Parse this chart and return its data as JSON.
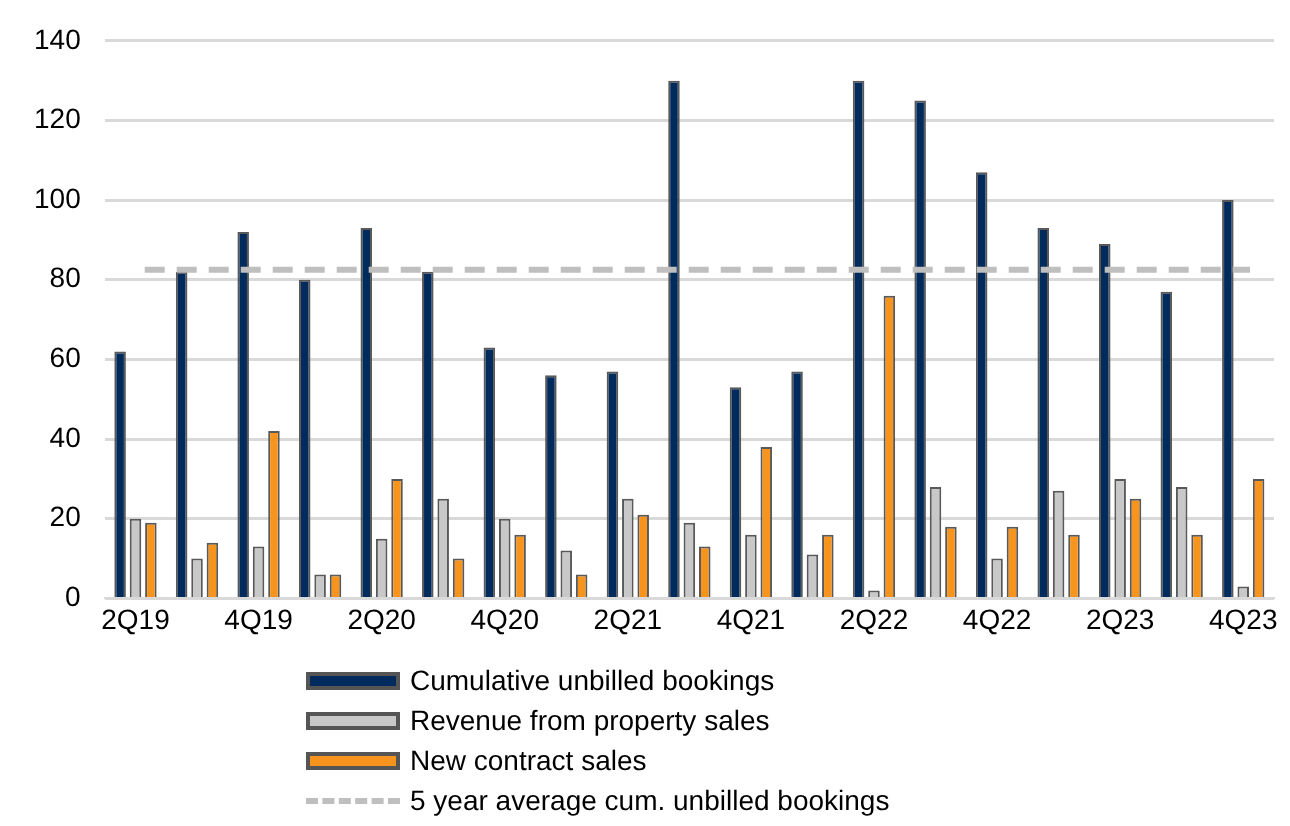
{
  "chart_data": {
    "type": "bar",
    "categories": [
      "2Q19",
      null,
      "4Q19",
      null,
      "2Q20",
      null,
      "4Q20",
      null,
      "2Q21",
      null,
      "4Q21",
      null,
      "2Q22",
      null,
      "4Q22",
      null,
      "2Q23",
      null,
      "4Q23"
    ],
    "series": [
      {
        "name": "Cumulative unbilled bookings",
        "color": "#002b5c",
        "values": [
          62,
          82,
          92,
          80,
          93,
          82,
          63,
          56,
          57,
          130,
          53,
          57,
          130,
          125,
          107,
          93,
          89,
          77,
          100
        ]
      },
      {
        "name": "Revenue from property sales",
        "color": "#c8c8c8",
        "values": [
          20,
          10,
          13,
          6,
          15,
          25,
          20,
          12,
          25,
          19,
          16,
          11,
          2,
          28,
          10,
          27,
          30,
          28,
          3
        ]
      },
      {
        "name": "New contract sales",
        "color": "#f7941d",
        "values": [
          19,
          14,
          42,
          6,
          30,
          10,
          16,
          6,
          21,
          13,
          38,
          16,
          76,
          18,
          18,
          16,
          25,
          16,
          30
        ]
      }
    ],
    "ref_lines": [
      {
        "axis": "y",
        "value": 82.5,
        "label": "5 year average cum. unbilled bookings",
        "color": "#bfbfbf",
        "line_style": "dashed"
      }
    ],
    "ylim": [
      0,
      140
    ],
    "yticks": [
      0,
      20,
      40,
      60,
      80,
      100,
      120,
      140
    ],
    "grid": "y",
    "legend": "bottom"
  }
}
